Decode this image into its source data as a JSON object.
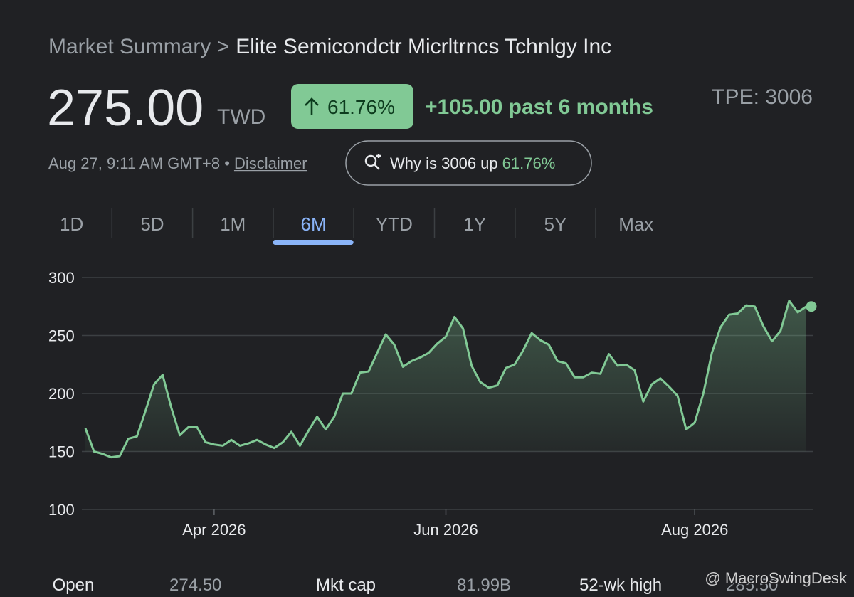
{
  "header": {
    "breadcrumb": "Market Summary >",
    "company": "Elite Semicondctr Micrltrncs Tchnlgy Inc"
  },
  "quote": {
    "price": "275.00",
    "currency": "TWD",
    "change_percent": "61.76%",
    "change_text": "+105.00 past 6 months",
    "ticker": "TPE: 3006",
    "timestamp": "Aug 27, 9:11 AM GMT+8 •",
    "disclaimer": "Disclaimer",
    "why_button": "Why is 3006 up",
    "why_percent": "61.76%"
  },
  "tabs": {
    "items": [
      "1D",
      "5D",
      "1M",
      "6M",
      "YTD",
      "1Y",
      "5Y",
      "Max"
    ],
    "selected": "6M"
  },
  "chart_data": {
    "type": "line",
    "categories": [
      null,
      null,
      null,
      null,
      null,
      null,
      null,
      null,
      null,
      null,
      null,
      null,
      null,
      null,
      null,
      "Apr 2026",
      null,
      null,
      null,
      null,
      null,
      null,
      null,
      null,
      null,
      null,
      null,
      null,
      null,
      null,
      null,
      null,
      null,
      null,
      null,
      null,
      null,
      null,
      null,
      null,
      null,
      null,
      "Jun 2026",
      null,
      null,
      null,
      null,
      null,
      null,
      null,
      null,
      null,
      null,
      null,
      null,
      null,
      null,
      null,
      null,
      null,
      null,
      null,
      null,
      null,
      null,
      null,
      null,
      null,
      null,
      null,
      null,
      "Aug 2026",
      null,
      null,
      null,
      null,
      null,
      null,
      null,
      null,
      null,
      null,
      null,
      null,
      null
    ],
    "series": [
      {
        "name": "3006",
        "color": "#81c995",
        "values": [
          170,
          150,
          148,
          145,
          146,
          161,
          163,
          185,
          208,
          216,
          188,
          164,
          171,
          171,
          158,
          156,
          155,
          160,
          155,
          157,
          160,
          156,
          153,
          158,
          167,
          155,
          168,
          180,
          169,
          180,
          200,
          200,
          218,
          219,
          235,
          251,
          242,
          223,
          228,
          231,
          235,
          243,
          249,
          266,
          256,
          224,
          210,
          205,
          207,
          222,
          225,
          237,
          252,
          246,
          242,
          228,
          226,
          214,
          214,
          218,
          217,
          234,
          224,
          225,
          220,
          193,
          208,
          213,
          206,
          198,
          169,
          175,
          200,
          235,
          257,
          268,
          269,
          276,
          275,
          258,
          245,
          254,
          280,
          270,
          275
        ]
      }
    ],
    "ylim": [
      100,
      300
    ],
    "yticks": [
      100,
      150,
      200,
      250,
      300
    ],
    "grid": true
  },
  "stats": {
    "open_label": "Open",
    "open": "274.50",
    "mktcap_label": "Mkt cap",
    "mktcap": "81.99B",
    "high_label": "52-wk high",
    "high": "285.50"
  },
  "watermark": "@ MacroSwingDesk"
}
